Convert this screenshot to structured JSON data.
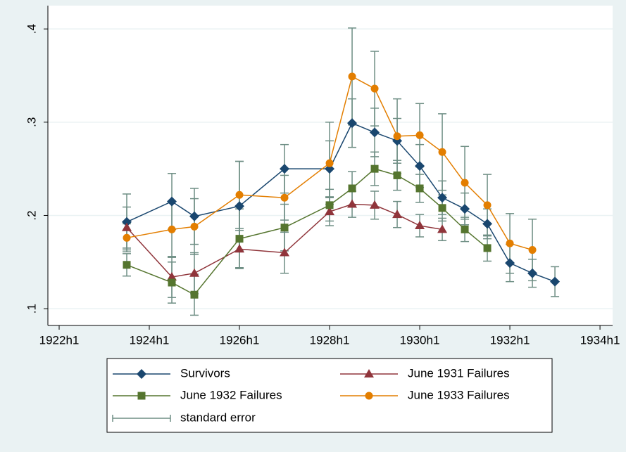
{
  "chart_data": {
    "type": "line",
    "x": [
      1923.5,
      1924.5,
      1925,
      1926,
      1927,
      1928,
      1928.5,
      1929,
      1929.5,
      1930,
      1930.5,
      1931,
      1931.5,
      1932,
      1932.5,
      1933
    ],
    "series": [
      {
        "name": "Survivors",
        "color": "#1a476f",
        "marker": "diamond",
        "x": [
          1923.5,
          1924.5,
          1925,
          1926,
          1927,
          1928,
          1928.5,
          1929,
          1929.5,
          1930,
          1930.5,
          1931,
          1931.5,
          1932,
          1932.5,
          1933
        ],
        "values": [
          0.193,
          0.215,
          0.199,
          0.21,
          0.25,
          0.25,
          0.299,
          0.289,
          0.28,
          0.253,
          0.219,
          0.207,
          0.191,
          0.149,
          0.138,
          0.129
        ],
        "errors": [
          0.03,
          0.03,
          0.03,
          0.048,
          0.026,
          0.03,
          0.026,
          0.026,
          0.024,
          0.023,
          0.018,
          0.017,
          0.016,
          0.02,
          0.015,
          0.016
        ]
      },
      {
        "name": "June 1931 Failures",
        "color": "#90353b",
        "marker": "triangle",
        "x": [
          1923.5,
          1924.5,
          1925,
          1926,
          1927,
          1928,
          1928.5,
          1929,
          1929.5,
          1930,
          1930.5
        ],
        "values": [
          0.187,
          0.134,
          0.138,
          0.164,
          0.16,
          0.204,
          0.212,
          0.211,
          0.201,
          0.189,
          0.185
        ],
        "errors": [
          0.022,
          0.022,
          0.022,
          0.02,
          0.022,
          0.015,
          0.014,
          0.015,
          0.014,
          0.012,
          0.012
        ]
      },
      {
        "name": "June 1932 Failures",
        "color": "#55752f",
        "marker": "square",
        "x": [
          1923.5,
          1924.5,
          1925,
          1926,
          1927,
          1928,
          1928.5,
          1929,
          1929.5,
          1930,
          1930.5,
          1931,
          1931.5
        ],
        "values": [
          0.147,
          0.128,
          0.115,
          0.175,
          0.187,
          0.211,
          0.229,
          0.25,
          0.243,
          0.229,
          0.208,
          0.185,
          0.165
        ],
        "errors": [
          0.012,
          0.022,
          0.022,
          0.032,
          0.025,
          0.017,
          0.018,
          0.018,
          0.016,
          0.015,
          0.014,
          0.013,
          0.014
        ]
      },
      {
        "name": "June 1933 Failures",
        "color": "#e37e00",
        "marker": "circle",
        "x": [
          1923.5,
          1924.5,
          1925,
          1926,
          1927,
          1928,
          1928.5,
          1929,
          1929.5,
          1930,
          1930.5,
          1931,
          1931.5,
          1932,
          1932.5
        ],
        "values": [
          0.176,
          0.185,
          0.188,
          0.222,
          0.219,
          0.256,
          0.349,
          0.336,
          0.285,
          0.286,
          0.268,
          0.235,
          0.211,
          0.17,
          0.163
        ],
        "errors": [
          0.015,
          0.03,
          0.03,
          0.036,
          0.024,
          0.044,
          0.052,
          0.04,
          0.04,
          0.034,
          0.041,
          0.039,
          0.033,
          0.032,
          0.033
        ]
      }
    ],
    "error_label": "standard error",
    "error_color": "#6e8e84",
    "xlim": [
      1921.75,
      1934.28
    ],
    "xticks": [
      {
        "value": 1922,
        "label": "1922h1"
      },
      {
        "value": 1924,
        "label": "1924h1"
      },
      {
        "value": 1926,
        "label": "1926h1"
      },
      {
        "value": 1928,
        "label": "1928h1"
      },
      {
        "value": 1930,
        "label": "1930h1"
      },
      {
        "value": 1932,
        "label": "1932h1"
      },
      {
        "value": 1934,
        "label": "1934h1"
      }
    ],
    "ylim": [
      0.082,
      0.425
    ],
    "yticks": [
      {
        "value": 0.1,
        "label": ".1"
      },
      {
        "value": 0.2,
        "label": ".2"
      },
      {
        "value": 0.3,
        "label": ".3"
      },
      {
        "value": 0.4,
        "label": ".4"
      }
    ],
    "grid": true,
    "legend": "bottom"
  }
}
